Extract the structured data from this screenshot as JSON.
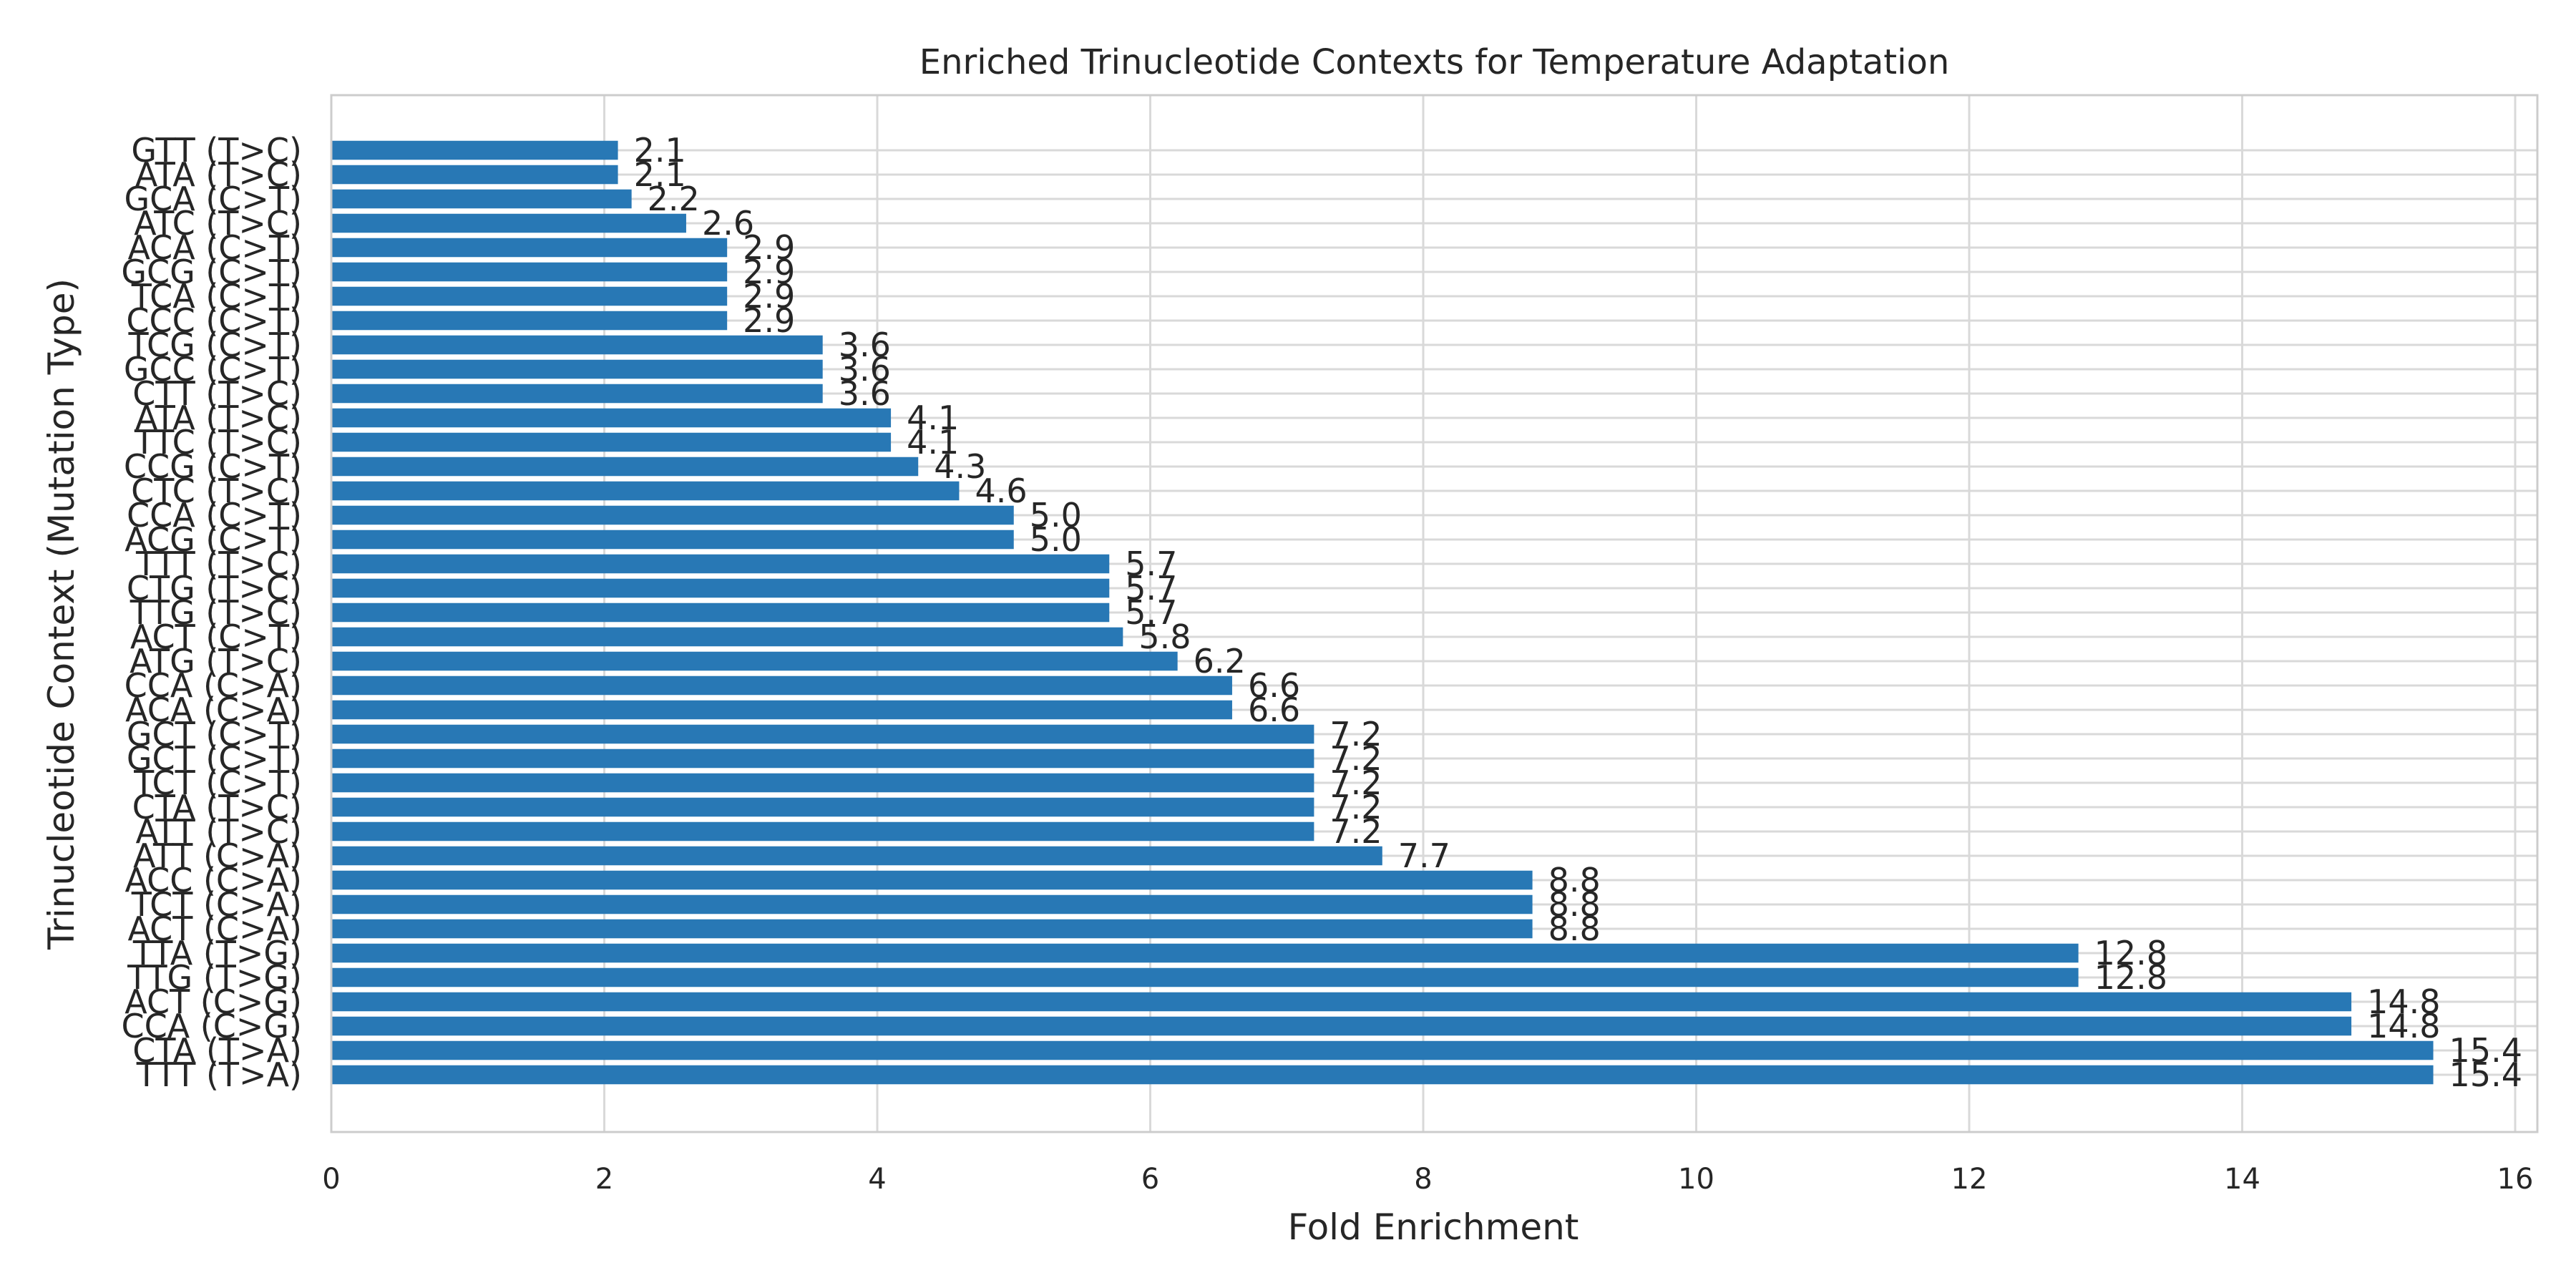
{
  "chart_data": {
    "type": "bar",
    "orientation": "horizontal",
    "title": "Enriched Trinucleotide Contexts for Temperature Adaptation",
    "xlabel": "Fold Enrichment",
    "ylabel": "Trinucleotide Context (Mutation Type)",
    "xlim": [
      0,
      16
    ],
    "xticks": [
      "0",
      "2",
      "4",
      "6",
      "8",
      "10",
      "12",
      "14",
      "16"
    ],
    "grid": true,
    "bar_color": "#2878b5",
    "categories": [
      "TTT (T>A)",
      "CTA (T>A)",
      "CCA (C>G)",
      "ACT (C>G)",
      "TTG (T>G)",
      "TTA (T>G)",
      "ACT (C>A)",
      "TCT (C>A)",
      "ACC (C>A)",
      "ATT (C>A)",
      "ATT (T>C)",
      "CTA (T>C)",
      "TCT (C>T)",
      "GCT (C>T)",
      "GCT (C>T)",
      "ACA (C>A)",
      "CCA (C>A)",
      "ATG (T>C)",
      "ACT (C>T)",
      "TTG (T>C)",
      "CTG (T>C)",
      "TTT (T>C)",
      "ACG (C>T)",
      "CCA (C>T)",
      "CTC (T>C)",
      "CCG (C>T)",
      "TTC (T>C)",
      "ATA (T>C)",
      "CTT (T>C)",
      "GCC (C>T)",
      "TCG (C>T)",
      "CCC (C>T)",
      "TCA (C>T)",
      "GCG (C>T)",
      "ACA (C>T)",
      "ATC (T>C)",
      "GCA (C>T)",
      "ATA (T>C)",
      "GTT (T>C)"
    ],
    "values": [
      15.4,
      15.4,
      14.8,
      14.8,
      12.8,
      12.8,
      8.8,
      8.8,
      8.8,
      7.7,
      7.2,
      7.2,
      7.2,
      7.2,
      7.2,
      6.6,
      6.6,
      6.2,
      5.8,
      5.7,
      5.7,
      5.7,
      5.0,
      5.0,
      4.6,
      4.3,
      4.1,
      4.1,
      3.6,
      3.6,
      3.6,
      2.9,
      2.9,
      2.9,
      2.9,
      2.6,
      2.2,
      2.1,
      2.1
    ],
    "value_labels": [
      "15.4",
      "15.4",
      "14.8",
      "14.8",
      "12.8",
      "12.8",
      "8.8",
      "8.8",
      "8.8",
      "7.7",
      "7.2",
      "7.2",
      "7.2",
      "7.2",
      "7.2",
      "6.6",
      "6.6",
      "6.2",
      "5.8",
      "5.7",
      "5.7",
      "5.7",
      "5.0",
      "5.0",
      "4.6",
      "4.3",
      "4.1",
      "4.1",
      "3.6",
      "3.6",
      "3.6",
      "2.9",
      "2.9",
      "2.9",
      "2.9",
      "2.6",
      "2.2",
      "2.1",
      "2.1"
    ]
  }
}
